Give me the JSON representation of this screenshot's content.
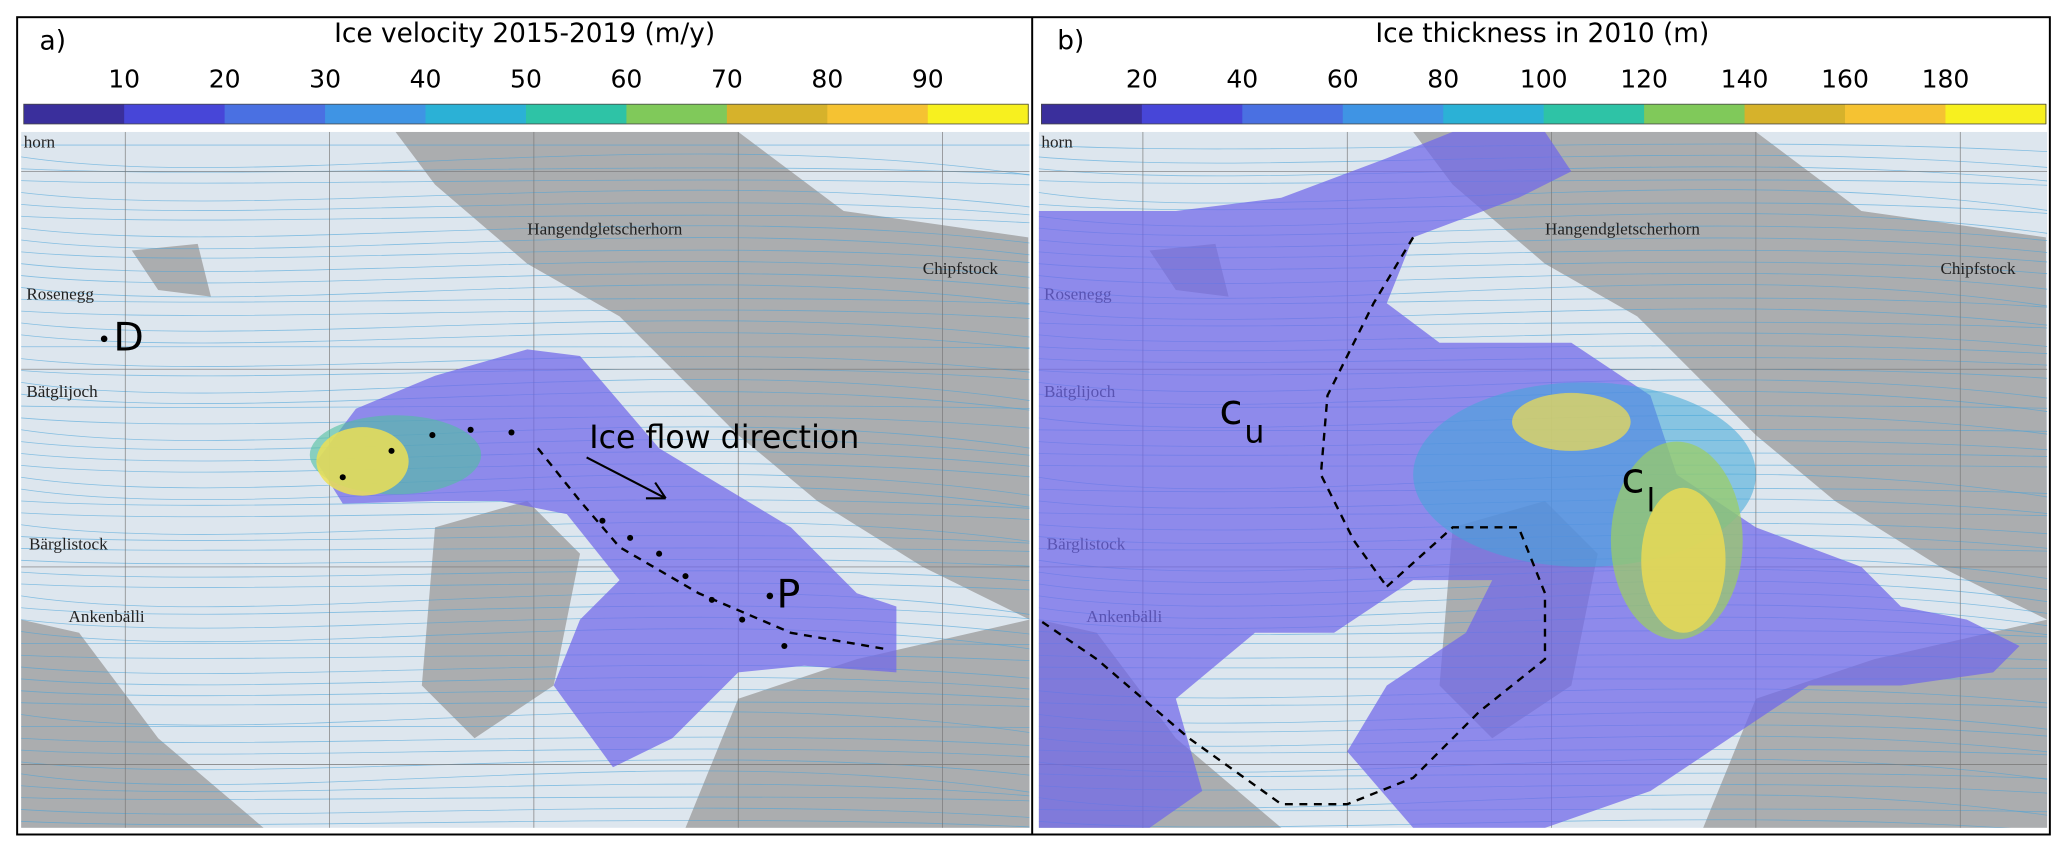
{
  "panels": [
    {
      "label": "a)",
      "title": "Ice velocity 2015-2019 (m/y)",
      "colorbar": {
        "ticks": [
          10,
          20,
          30,
          40,
          50,
          60,
          70,
          80,
          90
        ],
        "colors": [
          "#3a2f9c",
          "#4746d8",
          "#4a70e2",
          "#3f94e4",
          "#2bb1d6",
          "#2ec3a6",
          "#80c95a",
          "#d6b22b",
          "#f5c232",
          "#f7f01f"
        ]
      },
      "place_names": [
        "horn",
        "Rosenegg",
        "Bätglijoch",
        "Bärglistock",
        "Ankenbälli",
        "Hangendgletscherhorn",
        "Chipfstock"
      ],
      "annotations": {
        "point_d": "D",
        "point_p": "P",
        "arrow": "Ice flow direction"
      }
    },
    {
      "label": "b)",
      "title": "Ice thickness in 2010 (m)",
      "colorbar": {
        "ticks": [
          20,
          40,
          60,
          80,
          100,
          120,
          140,
          160,
          180
        ],
        "colors": [
          "#3a2f9c",
          "#4746d8",
          "#4a70e2",
          "#3f94e4",
          "#2bb1d6",
          "#2ec3a6",
          "#80c95a",
          "#d6b22b",
          "#f5c232",
          "#f7f01f"
        ]
      },
      "place_names": [
        "horn",
        "Rosenegg",
        "Bätglijoch",
        "Bärglistock",
        "Ankenbälli",
        "Hangendgletscherhorn",
        "Chipfstock"
      ],
      "annotations": {
        "c_upper": {
          "base": "c",
          "sub": "u"
        },
        "c_lower": {
          "base": "c",
          "sub": "l"
        }
      }
    }
  ]
}
